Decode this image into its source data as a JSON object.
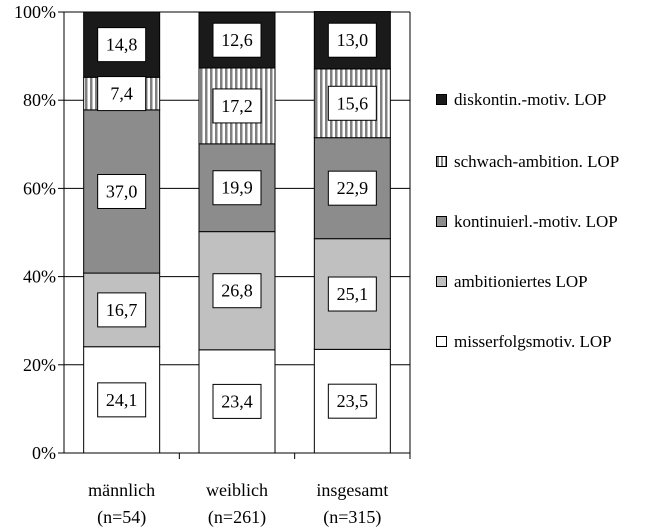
{
  "chart_data": {
    "type": "bar",
    "stacked": true,
    "normalized_percent": true,
    "categories": [
      {
        "line1": "männlich",
        "line2": "(n=54)"
      },
      {
        "line1": "weiblich",
        "line2": "(n=261)"
      },
      {
        "line1": "insgesamt",
        "line2": "(n=315)"
      }
    ],
    "series": [
      {
        "name": "misserfolgsmotiv. LOP",
        "color": "#ffffff",
        "pattern": "none",
        "values": [
          24.1,
          23.4,
          23.5
        ],
        "labels": [
          "24,1",
          "23,4",
          "23,5"
        ]
      },
      {
        "name": "ambitioniertes LOP",
        "color": "#c0c0c0",
        "pattern": "none",
        "values": [
          16.7,
          26.8,
          25.1
        ],
        "labels": [
          "16,7",
          "26,8",
          "25,1"
        ]
      },
      {
        "name": "kontinuierl.-motiv. LOP",
        "color": "#8c8c8c",
        "pattern": "none",
        "values": [
          37.0,
          19.9,
          22.9
        ],
        "labels": [
          "37,0",
          "19,9",
          "22,9"
        ]
      },
      {
        "name": "schwach-ambition. LOP",
        "color": "#ffffff",
        "pattern": "vertical-stripes",
        "values": [
          7.4,
          17.2,
          15.6
        ],
        "labels": [
          "7,4",
          "17,2",
          "15,6"
        ]
      },
      {
        "name": "diskontin.-motiv. LOP",
        "color": "#1a1a1a",
        "pattern": "none",
        "values": [
          14.8,
          12.6,
          13.0
        ],
        "labels": [
          "14,8",
          "12,6",
          "13,0"
        ]
      }
    ],
    "y_ticks": [
      "0%",
      "20%",
      "40%",
      "60%",
      "80%",
      "100%"
    ],
    "ylim": [
      0,
      100
    ],
    "grid": true,
    "legend_position": "right",
    "legend_order": [
      "diskontin.-motiv. LOP",
      "schwach-ambition. LOP",
      "kontinuierl.-motiv. LOP",
      "ambitioniertes LOP",
      "misserfolgsmotiv. LOP"
    ]
  }
}
